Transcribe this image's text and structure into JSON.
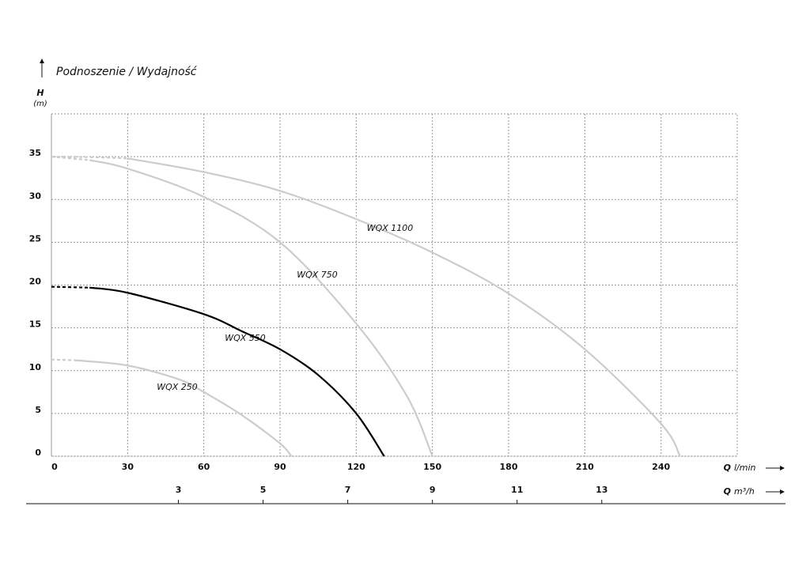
{
  "chart_data": {
    "type": "line",
    "title": "Podnoszenie / Wydajność",
    "y_label_symbol": "H",
    "y_label_unit": "(m)",
    "x_label_symbol": "Q",
    "x_label_unit": "l/min",
    "x2_label_symbol": "Q",
    "x2_label_unit": "m³/h",
    "xlim": [
      0,
      270
    ],
    "xticks": [
      0,
      30,
      60,
      90,
      120,
      150,
      180,
      210,
      240
    ],
    "x2lim": [
      0,
      16.2
    ],
    "x2ticks": [
      3,
      5,
      7,
      9,
      11,
      13
    ],
    "ylim": [
      0,
      40
    ],
    "yticks": [
      0,
      5,
      10,
      15,
      20,
      25,
      30,
      35
    ],
    "grid": true,
    "series": [
      {
        "color": "#cccccc",
        "dashed": true,
        "x": [
          0,
          15,
          30
        ],
        "values": [
          35,
          34.95,
          34.8
        ]
      },
      {
        "name": "WQX 1100",
        "color": "#cccccc",
        "x": [
          30,
          60,
          90,
          120,
          150,
          180,
          210,
          240,
          247.5
        ],
        "values": [
          34.8,
          33.2,
          31,
          27.7,
          23.8,
          19,
          12.5,
          3.8,
          0
        ]
      },
      {
        "color": "#cccccc",
        "dashed": true,
        "x": [
          0,
          15
        ],
        "values": [
          35,
          34.6
        ]
      },
      {
        "name": "WQX 750",
        "color": "#cccccc",
        "x": [
          15,
          30,
          60,
          90,
          120,
          140,
          150
        ],
        "values": [
          34.6,
          33.6,
          30.3,
          25,
          15.5,
          7,
          0
        ]
      },
      {
        "color": "#000000",
        "dashed": true,
        "x": [
          0,
          15
        ],
        "values": [
          19.8,
          19.7
        ]
      },
      {
        "name": "WQX 550",
        "color": "#000000",
        "x": [
          15,
          30,
          60,
          75,
          90,
          105,
          120,
          131
        ],
        "values": [
          19.7,
          19.1,
          16.6,
          14.6,
          12.5,
          9.5,
          5,
          0
        ]
      },
      {
        "color": "#cccccc",
        "dashed": true,
        "x": [
          0,
          10
        ],
        "values": [
          11.3,
          11.2
        ]
      },
      {
        "name": "WQX 250",
        "color": "#cccccc",
        "x": [
          10,
          30,
          50,
          60,
          75,
          90,
          94.5
        ],
        "values": [
          11.2,
          10.6,
          9,
          7.5,
          4.8,
          1.5,
          0
        ]
      }
    ]
  }
}
